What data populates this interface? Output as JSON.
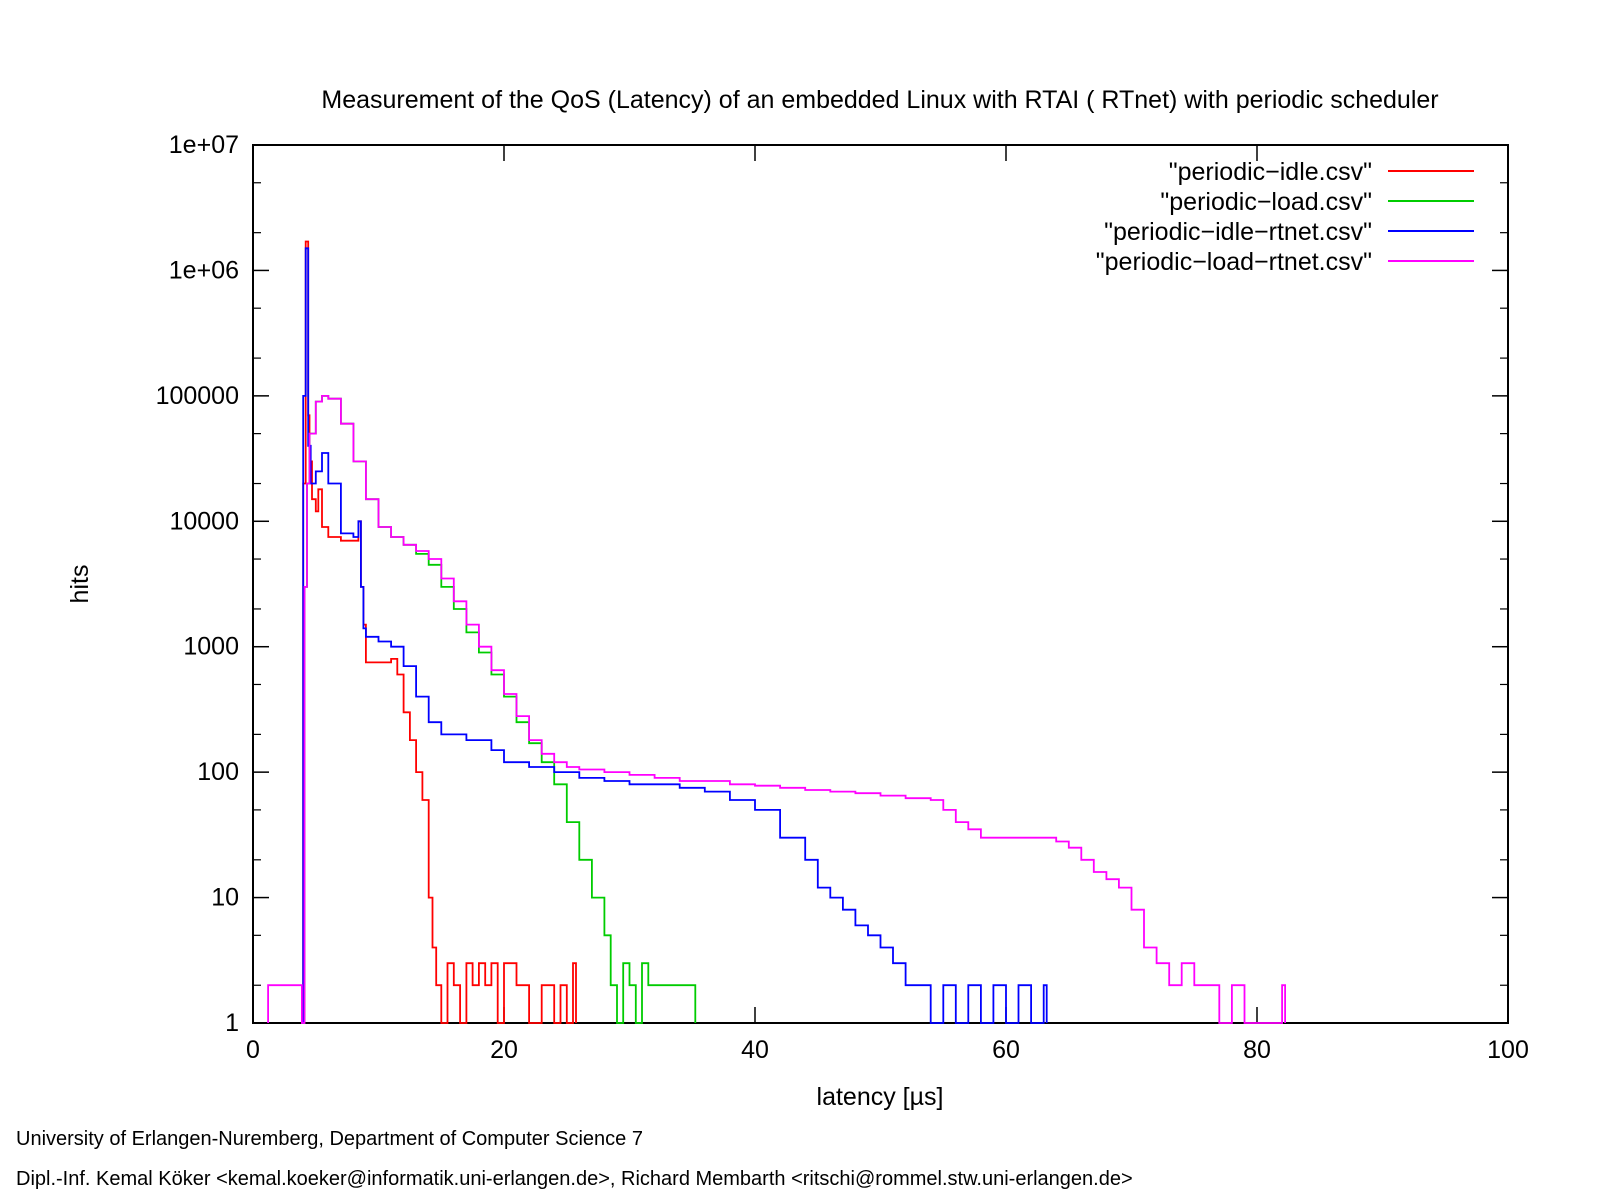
{
  "chart_data": {
    "type": "line",
    "title": "Measurement of the QoS (Latency) of an embedded Linux with RTAI ( RTnet) with periodic scheduler",
    "xlabel": "latency [µs]",
    "ylabel": "hits",
    "xlim": [
      0,
      100
    ],
    "ylim": [
      1,
      10000000
    ],
    "y_scale": "log",
    "x_ticks": [
      0,
      20,
      40,
      60,
      80,
      100
    ],
    "x_tick_labels": [
      "0",
      "20",
      "40",
      "60",
      "80",
      "100"
    ],
    "y_ticks": [
      1,
      10,
      100,
      1000,
      10000,
      100000,
      1000000,
      10000000
    ],
    "y_tick_labels": [
      "1",
      "10",
      "100",
      "1000",
      "10000",
      "100000",
      "1e+06",
      "1e+07"
    ],
    "grid": false,
    "legend_position": "top-right",
    "series": [
      {
        "name": "\"periodic−idle.csv\"",
        "color": "#ff0000",
        "x": [
          3.9,
          4.0,
          4.2,
          4.4,
          4.5,
          4.7,
          5.0,
          5.2,
          5.5,
          6.0,
          7.0,
          8.0,
          8.4,
          8.6,
          8.8,
          9.0,
          10.0,
          11.0,
          11.5,
          12.0,
          12.5,
          13.0,
          13.5,
          14.0,
          14.3,
          14.6,
          15.0,
          15.5,
          16.0,
          16.5,
          17.0,
          17.5,
          18.0,
          18.5,
          19.0,
          19.5,
          20.0,
          21.0,
          22.0,
          23.0,
          24.0,
          24.5,
          25.0,
          25.5
        ],
        "values": [
          1,
          20000,
          1700000,
          70000,
          30000,
          15000,
          12000,
          18000,
          9000,
          7500,
          7000,
          7000,
          10000,
          3000,
          1500,
          750,
          750,
          800,
          600,
          300,
          180,
          100,
          60,
          10,
          4,
          2,
          1,
          3,
          2,
          1,
          3,
          2,
          3,
          2,
          3,
          1,
          3,
          2,
          1,
          2,
          1,
          2,
          1,
          3
        ]
      },
      {
        "name": "\"periodic−load.csv\"",
        "color": "#00cc00",
        "x": [
          3.9,
          4.1,
          4.3,
          4.5,
          5.0,
          5.5,
          6.0,
          7.0,
          8.0,
          9.0,
          10.0,
          11.0,
          12.0,
          13.0,
          14.0,
          15.0,
          16.0,
          17.0,
          18.0,
          19.0,
          20.0,
          21.0,
          22.0,
          23.0,
          24.0,
          25.0,
          26.0,
          27.0,
          28.0,
          28.5,
          29.0,
          29.5,
          30.0,
          30.5,
          31.0,
          31.5,
          35.0
        ],
        "values": [
          1,
          3000,
          20000,
          50000,
          90000,
          100000,
          95000,
          60000,
          30000,
          15000,
          9000,
          7500,
          6500,
          5500,
          4500,
          3000,
          2000,
          1300,
          900,
          600,
          400,
          250,
          170,
          120,
          80,
          40,
          20,
          10,
          5,
          2,
          1,
          3,
          2,
          1,
          3,
          2,
          2
        ]
      },
      {
        "name": "\"periodic−idle−rtnet.csv\"",
        "color": "#0000ff",
        "x": [
          3.9,
          4.0,
          4.2,
          4.4,
          4.6,
          5.0,
          5.5,
          6.0,
          7.0,
          8.0,
          8.4,
          8.6,
          8.8,
          9.0,
          10.0,
          11.0,
          12.0,
          13.0,
          14.0,
          15.0,
          17.0,
          19.0,
          20.0,
          22.0,
          24.0,
          26.0,
          28.0,
          30.0,
          32.0,
          34.0,
          36.0,
          38.0,
          40.0,
          42.0,
          44.0,
          45.0,
          46.0,
          47.0,
          48.0,
          49.0,
          50.0,
          51.0,
          52.0,
          53.0,
          54.0,
          55.0,
          56.0,
          57.0,
          58.0,
          59.0,
          60.0,
          61.0,
          62.0,
          63.0
        ],
        "values": [
          1,
          100000,
          1500000,
          40000,
          20000,
          25000,
          35000,
          20000,
          8000,
          7500,
          10000,
          3000,
          1400,
          1200,
          1100,
          1000,
          700,
          400,
          250,
          200,
          180,
          150,
          120,
          110,
          100,
          90,
          85,
          80,
          80,
          75,
          70,
          60,
          50,
          30,
          20,
          12,
          10,
          8,
          6,
          5,
          4,
          3,
          2,
          2,
          1,
          2,
          1,
          2,
          1,
          2,
          1,
          2,
          1,
          2
        ]
      },
      {
        "name": "\"periodic−load−rtnet.csv\"",
        "color": "#ff00ff",
        "x": [
          1.2,
          3.9,
          4.1,
          4.3,
          4.5,
          5.0,
          5.5,
          6.0,
          7.0,
          8.0,
          9.0,
          10.0,
          11.0,
          12.0,
          13.0,
          14.0,
          15.0,
          16.0,
          17.0,
          18.0,
          19.0,
          20.0,
          21.0,
          22.0,
          23.0,
          24.0,
          25.0,
          26.0,
          28.0,
          30.0,
          32.0,
          34.0,
          36.0,
          38.0,
          40.0,
          42.0,
          44.0,
          46.0,
          48.0,
          50.0,
          52.0,
          54.0,
          55.0,
          56.0,
          57.0,
          58.0,
          60.0,
          62.0,
          64.0,
          65.0,
          66.0,
          67.0,
          68.0,
          69.0,
          70.0,
          71.0,
          72.0,
          73.0,
          74.0,
          75.0,
          76.0,
          77.0,
          78.0,
          79.0,
          82.0
        ],
        "values": [
          2,
          1,
          3000,
          20000,
          50000,
          90000,
          100000,
          95000,
          60000,
          30000,
          15000,
          9000,
          7500,
          6500,
          5800,
          5000,
          3500,
          2300,
          1500,
          1000,
          650,
          420,
          280,
          180,
          140,
          120,
          110,
          105,
          100,
          95,
          90,
          85,
          85,
          80,
          78,
          75,
          72,
          70,
          68,
          65,
          62,
          60,
          50,
          40,
          35,
          30,
          30,
          30,
          28,
          25,
          20,
          16,
          14,
          12,
          8,
          4,
          3,
          2,
          3,
          2,
          2,
          1,
          2,
          1,
          2
        ]
      }
    ]
  },
  "credits": {
    "line1": "University of Erlangen-Nuremberg, Department of Computer Science 7",
    "line2": "Dipl.-Inf. Kemal Köker <kemal.koeker@informatik.uni-erlangen.de>, Richard Membarth <ritschi@rommel.stw.uni-erlangen.de>"
  }
}
